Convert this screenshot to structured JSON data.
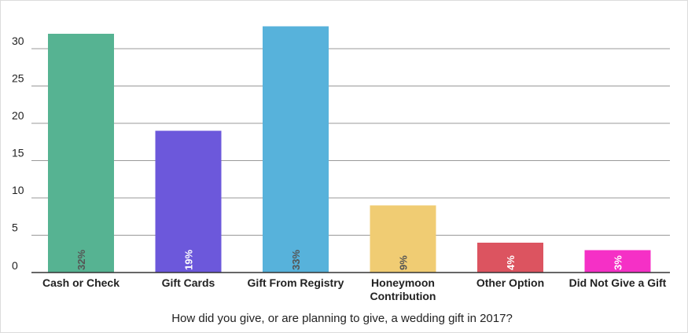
{
  "chart_data": {
    "type": "bar",
    "title": "",
    "xlabel": "How did you give, or are planning to give, a wedding gift in 2017?",
    "ylabel": "",
    "ylim": [
      0,
      33
    ],
    "yticks": [
      0,
      5,
      10,
      15,
      20,
      25,
      30
    ],
    "grid": true,
    "legend": "none",
    "categories": [
      [
        "Cash or Check"
      ],
      [
        "Gift Cards"
      ],
      [
        "Gift From Registry"
      ],
      [
        "Honeymoon",
        "Contribution"
      ],
      [
        "Other Option"
      ],
      [
        "Did Not Give a Gift"
      ]
    ],
    "values": [
      32,
      19,
      33,
      9,
      4,
      3
    ],
    "data_labels": [
      "32%",
      "19%",
      "33%",
      "9%",
      "4%",
      "3%"
    ],
    "colors": [
      "#56b392",
      "#6c58db",
      "#57b2db",
      "#f0cc73",
      "#dc5460",
      "#f530c6"
    ],
    "label_colors": [
      "#555555",
      "#ffffff",
      "#555555",
      "#555555",
      "#ffffff",
      "#ffffff"
    ]
  }
}
